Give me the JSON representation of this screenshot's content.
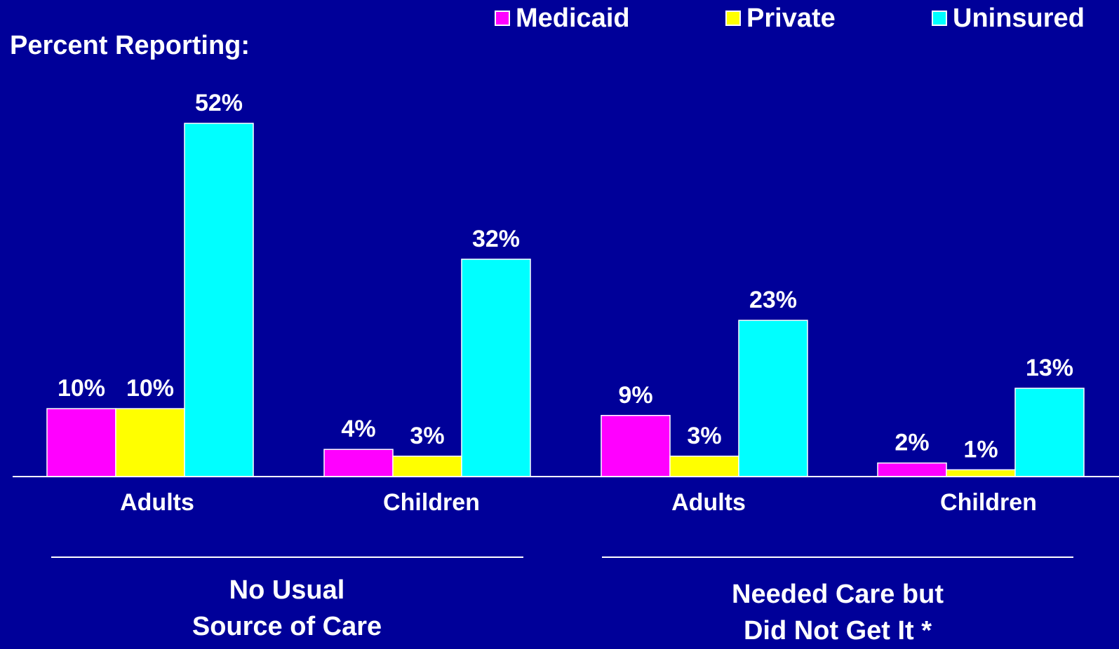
{
  "chart_data": {
    "type": "bar",
    "ylabel": "Percent Reporting:",
    "categories": [
      "Adults",
      "Children",
      "Adults",
      "Children"
    ],
    "groups": [
      {
        "title_lines": [
          "No Usual",
          "Source of Care"
        ],
        "categories": [
          "Adults",
          "Children"
        ]
      },
      {
        "title_lines": [
          "Needed Care but",
          "Did Not Get It *"
        ],
        "categories": [
          "Adults",
          "Children"
        ]
      }
    ],
    "series": [
      {
        "name": "Medicaid",
        "color": "#ff00ff",
        "values": [
          10,
          4,
          9,
          2
        ],
        "labels": [
          "10%",
          "4%",
          "9%",
          "2%"
        ]
      },
      {
        "name": "Private",
        "color": "#ffff00",
        "values": [
          10,
          3,
          3,
          1
        ],
        "labels": [
          "10%",
          "3%",
          "3%",
          "1%"
        ]
      },
      {
        "name": "Uninsured",
        "color": "#00ffff",
        "values": [
          52,
          32,
          23,
          13
        ],
        "labels": [
          "52%",
          "32%",
          "23%",
          "13%"
        ]
      }
    ],
    "ylim": [
      0,
      52
    ],
    "grid": false,
    "legend_position": "top-right",
    "background": "#000099"
  }
}
